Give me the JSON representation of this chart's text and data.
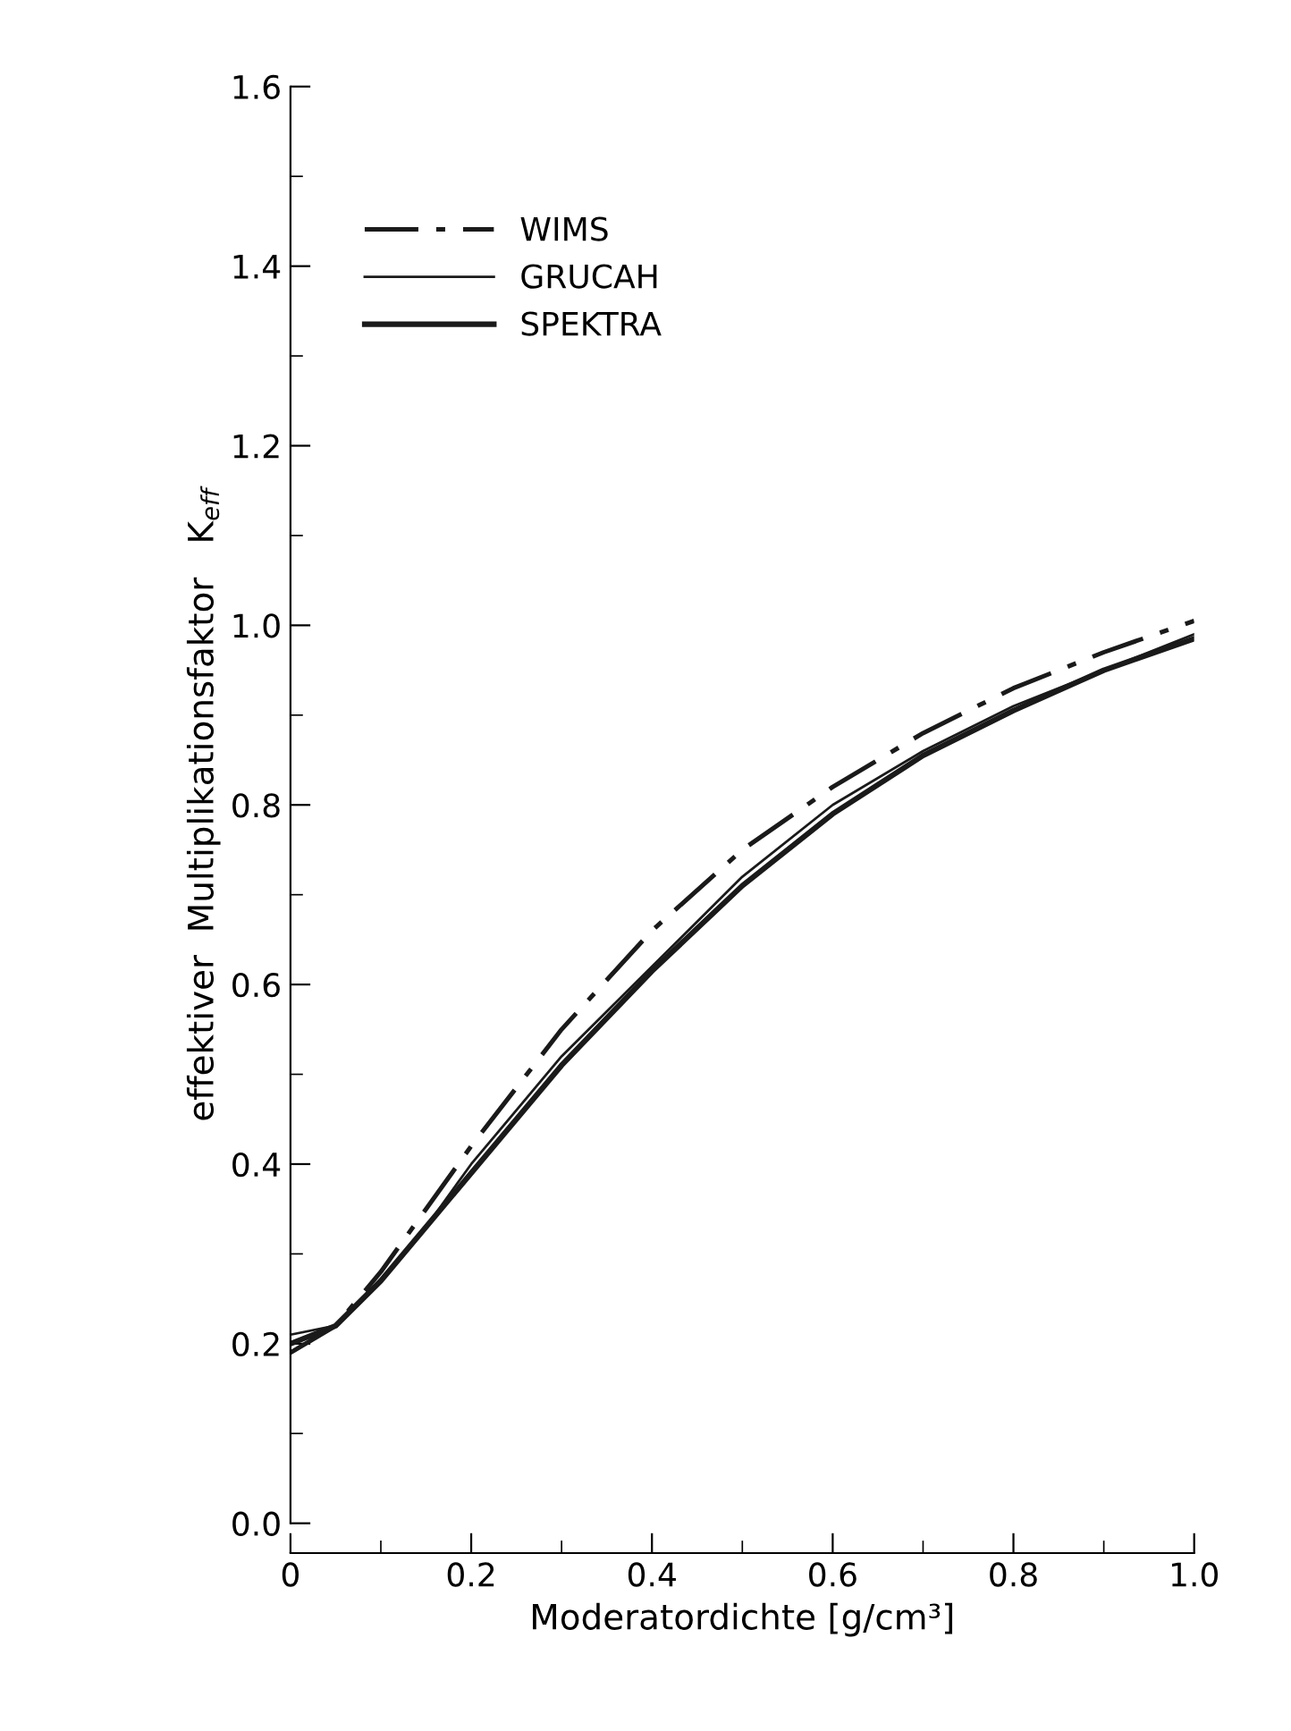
{
  "chart_data": {
    "type": "line",
    "xlabel": "Moderatordichte [g/cm³]",
    "ylabel": "effektiver  Multiplikationsfaktor   K$_{eff}$",
    "x": [
      0,
      0.05,
      0.1,
      0.15,
      0.2,
      0.3,
      0.4,
      0.5,
      0.6,
      0.7,
      0.8,
      0.9,
      1.0
    ],
    "series": [
      {
        "name": "WIMS",
        "color": "#1a1a1a",
        "line_style": "dashdot",
        "values": [
          0.19,
          0.22,
          0.28,
          0.35,
          0.42,
          0.55,
          0.66,
          0.75,
          0.82,
          0.88,
          0.93,
          0.97,
          1.005
        ]
      },
      {
        "name": "GRUCAH",
        "color": "#1a1a1a",
        "line_style": "solid",
        "values": [
          0.21,
          0.22,
          0.27,
          0.33,
          0.4,
          0.52,
          0.62,
          0.72,
          0.8,
          0.86,
          0.91,
          0.95,
          0.99
        ]
      },
      {
        "name": "SPEKTRA",
        "color": "#1a1a1a",
        "line_style": "solid",
        "values": [
          0.2,
          0.22,
          0.27,
          0.33,
          0.39,
          0.51,
          0.615,
          0.71,
          0.79,
          0.855,
          0.905,
          0.95,
          0.985
        ]
      }
    ],
    "xlim": [
      0,
      1.0
    ],
    "ylim": [
      0,
      1.6
    ],
    "xticks": [
      {
        "value": 0,
        "label": "0"
      },
      0.2,
      0.4,
      0.6,
      0.8,
      {
        "value": 1.0,
        "label": "1.0"
      }
    ],
    "yticks": [
      {
        "value": 0,
        "label": "0.0"
      },
      0.2,
      0.4,
      0.6,
      0.8,
      {
        "value": 1.0,
        "label": "1.0"
      },
      1.2,
      1.4,
      1.6
    ],
    "grid": false,
    "legend": "top left",
    "marker": "none"
  }
}
